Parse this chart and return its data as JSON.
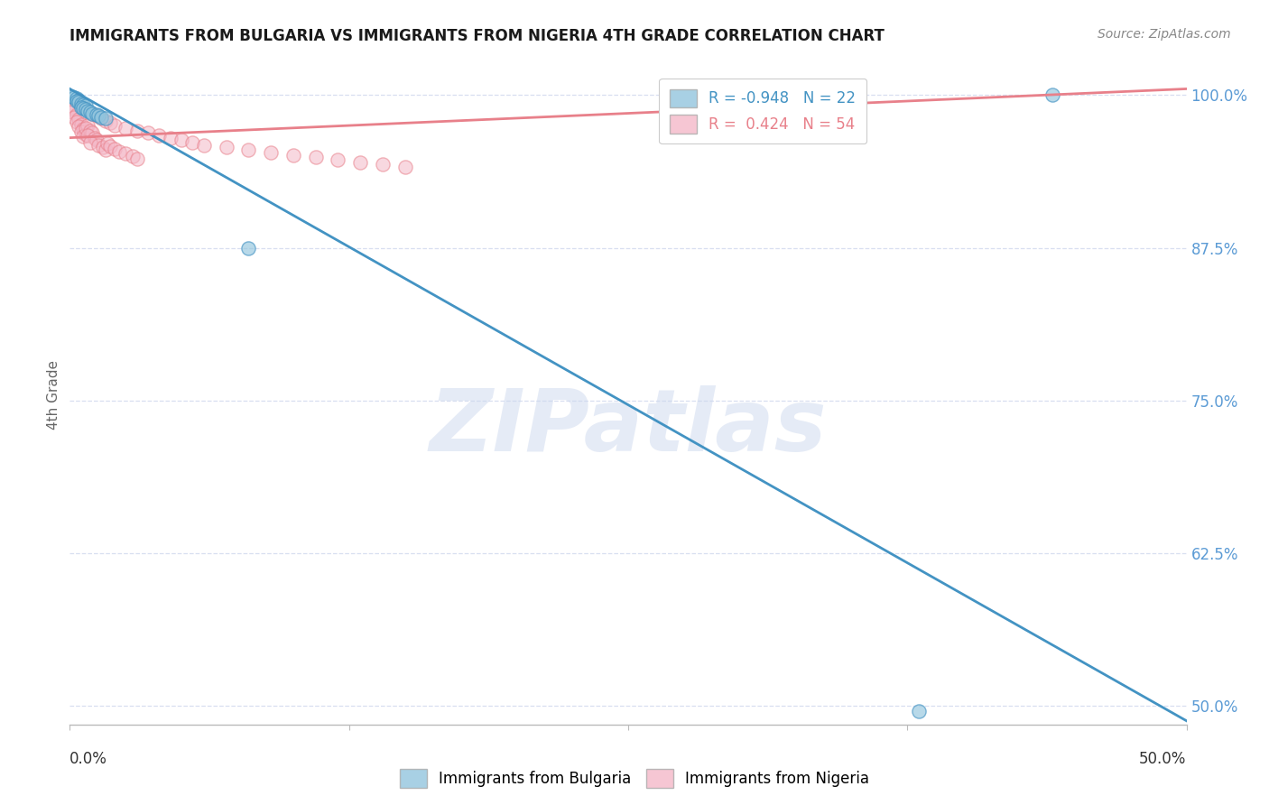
{
  "title": "IMMIGRANTS FROM BULGARIA VS IMMIGRANTS FROM NIGERIA 4TH GRADE CORRELATION CHART",
  "source": "Source: ZipAtlas.com",
  "ylabel": "4th Grade",
  "ytick_labels": [
    "100.0%",
    "87.5%",
    "75.0%",
    "62.5%",
    "50.0%"
  ],
  "ytick_values": [
    1.0,
    0.875,
    0.75,
    0.625,
    0.5
  ],
  "xtick_labels": [
    "0.0%",
    "",
    "",
    "",
    "50.0%"
  ],
  "xtick_values": [
    0.0,
    0.125,
    0.25,
    0.375,
    0.5
  ],
  "xlim": [
    0.0,
    0.5
  ],
  "ylim": [
    0.485,
    1.025
  ],
  "legend_r_blue": "-0.948",
  "legend_n_blue": "22",
  "legend_r_pink": " 0.424",
  "legend_n_pink": "54",
  "blue_scatter_color": "#92c5de",
  "pink_scatter_color": "#f4b8c8",
  "blue_line_color": "#4393c3",
  "pink_line_color": "#e8808a",
  "blue_scatter_edge": "#4393c3",
  "pink_scatter_edge": "#e8808a",
  "watermark": "ZIPatlas",
  "watermark_color": "#ccd8ee",
  "grid_color": "#d8dff0",
  "blue_line_x": [
    0.0,
    0.5
  ],
  "blue_line_y": [
    1.005,
    0.488
  ],
  "pink_line_x": [
    0.0,
    0.5
  ],
  "pink_line_y": [
    0.965,
    1.005
  ],
  "blue_scatter_x": [
    0.001,
    0.002,
    0.003,
    0.004,
    0.003,
    0.004,
    0.005,
    0.006,
    0.007,
    0.005,
    0.006,
    0.007,
    0.008,
    0.009,
    0.01,
    0.012,
    0.013,
    0.014,
    0.016,
    0.08,
    0.44,
    0.38
  ],
  "blue_scatter_y": [
    0.999,
    0.998,
    0.997,
    0.996,
    0.995,
    0.994,
    0.993,
    0.992,
    0.991,
    0.99,
    0.989,
    0.988,
    0.987,
    0.986,
    0.985,
    0.984,
    0.983,
    0.982,
    0.981,
    0.875,
    1.0,
    0.496
  ],
  "pink_scatter_x": [
    0.001,
    0.002,
    0.001,
    0.003,
    0.002,
    0.004,
    0.003,
    0.005,
    0.004,
    0.006,
    0.005,
    0.007,
    0.006,
    0.008,
    0.007,
    0.009,
    0.01,
    0.008,
    0.011,
    0.012,
    0.009,
    0.013,
    0.015,
    0.016,
    0.017,
    0.018,
    0.02,
    0.022,
    0.025,
    0.028,
    0.03,
    0.01,
    0.012,
    0.014,
    0.016,
    0.018,
    0.02,
    0.025,
    0.03,
    0.035,
    0.04,
    0.045,
    0.05,
    0.055,
    0.06,
    0.07,
    0.08,
    0.09,
    0.1,
    0.11,
    0.12,
    0.13,
    0.14,
    0.15
  ],
  "pink_scatter_y": [
    0.99,
    0.988,
    0.986,
    0.984,
    0.982,
    0.98,
    0.978,
    0.976,
    0.974,
    0.972,
    0.97,
    0.968,
    0.966,
    0.975,
    0.973,
    0.971,
    0.969,
    0.967,
    0.965,
    0.963,
    0.961,
    0.959,
    0.957,
    0.955,
    0.96,
    0.958,
    0.956,
    0.954,
    0.952,
    0.95,
    0.948,
    0.985,
    0.983,
    0.981,
    0.979,
    0.977,
    0.975,
    0.973,
    0.971,
    0.969,
    0.967,
    0.965,
    0.963,
    0.961,
    0.959,
    0.957,
    0.955,
    0.953,
    0.951,
    0.949,
    0.947,
    0.945,
    0.943,
    0.941
  ]
}
